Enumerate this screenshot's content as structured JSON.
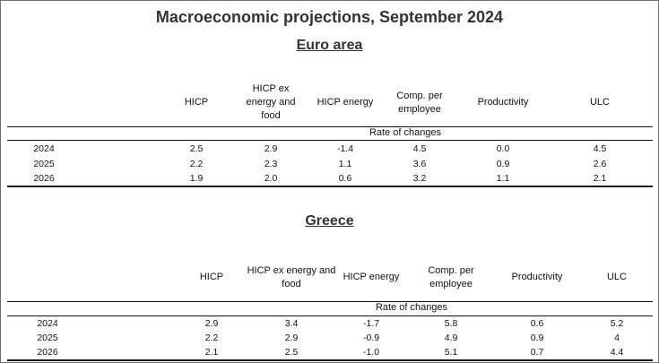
{
  "title": "Macroeconomic projections, September 2024",
  "euro_area": {
    "heading": "Euro area",
    "columns": [
      "HICP",
      "HICP ex energy and food",
      "HICP energy",
      "Comp. per employee",
      "Productivity",
      "ULC"
    ],
    "rate_label": "Rate of changes",
    "rows": [
      {
        "year": "2024",
        "values": [
          "2.5",
          "2.9",
          "-1.4",
          "4.5",
          "0.0",
          "4.5"
        ]
      },
      {
        "year": "2025",
        "values": [
          "2.2",
          "2.3",
          "1.1",
          "3.6",
          "0.9",
          "2.6"
        ]
      },
      {
        "year": "2026",
        "values": [
          "1.9",
          "2.0",
          "0.6",
          "3.2",
          "1.1",
          "2.1"
        ]
      }
    ]
  },
  "greece": {
    "heading": "Greece",
    "columns": [
      "HICP",
      "HICP ex energy and food",
      "HICP energy",
      "Comp. per employee",
      "Productivity",
      "ULC"
    ],
    "rate_label": "Rate of changes",
    "rows": [
      {
        "year": "2024",
        "values": [
          "2.9",
          "3.4",
          "-1.7",
          "5.8",
          "0.6",
          "5.2"
        ]
      },
      {
        "year": "2025",
        "values": [
          "2.2",
          "2.9",
          "-0.9",
          "4.9",
          "0.9",
          "4"
        ]
      },
      {
        "year": "2026",
        "values": [
          "2.1",
          "2.5",
          "-1.0",
          "5.1",
          "0.7",
          "4.4"
        ]
      }
    ]
  }
}
